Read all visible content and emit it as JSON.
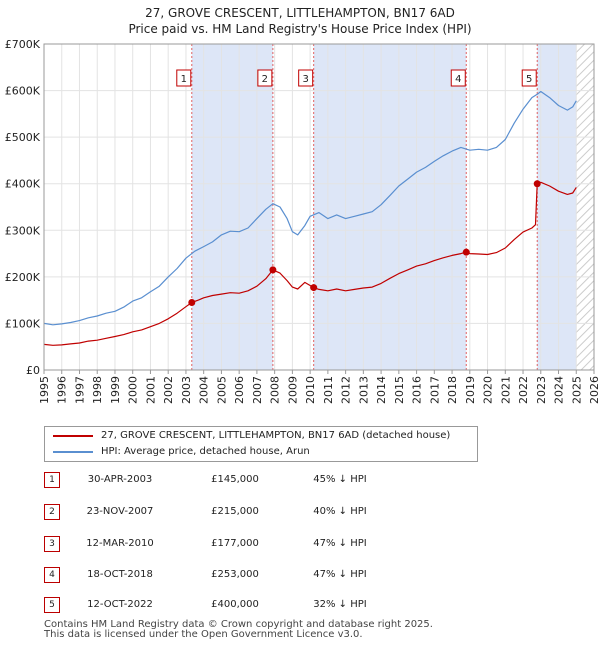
{
  "title_line1": "27, GROVE CRESCENT, LITTLEHAMPTON, BN17 6AD",
  "title_line2": "Price paid vs. HM Land Registry's House Price Index (HPI)",
  "legend": {
    "property_label": "27, GROVE CRESCENT, LITTLEHAMPTON, BN17 6AD (detached house)",
    "hpi_label": "HPI: Average price, detached house, Arun"
  },
  "colors": {
    "property": "#c00000",
    "hpi": "#5a8fd0",
    "shade": "#dde6f7",
    "hatch": "#cccccc"
  },
  "sales": [
    {
      "num": "1",
      "date": "30-APR-2003",
      "price": "£145,000",
      "hpi": "45% ↓ HPI"
    },
    {
      "num": "2",
      "date": "23-NOV-2007",
      "price": "£215,000",
      "hpi": "40% ↓ HPI"
    },
    {
      "num": "3",
      "date": "12-MAR-2010",
      "price": "£177,000",
      "hpi": "47% ↓ HPI"
    },
    {
      "num": "4",
      "date": "18-OCT-2018",
      "price": "£253,000",
      "hpi": "47% ↓ HPI"
    },
    {
      "num": "5",
      "date": "12-OCT-2022",
      "price": "£400,000",
      "hpi": "32% ↓ HPI"
    }
  ],
  "footer_line1": "Contains HM Land Registry data © Crown copyright and database right 2025.",
  "footer_line2": "This data is licensed under the Open Government Licence v3.0.",
  "chart_data": {
    "type": "line",
    "title": "Price paid vs. HM Land Registry's House Price Index (HPI)",
    "xlim": [
      1995,
      2026
    ],
    "ylim": [
      0,
      700000
    ],
    "x_ticks": [
      1995,
      1996,
      1997,
      1998,
      1999,
      2000,
      2001,
      2002,
      2003,
      2004,
      2005,
      2006,
      2007,
      2008,
      2009,
      2010,
      2011,
      2012,
      2013,
      2014,
      2015,
      2016,
      2017,
      2018,
      2019,
      2020,
      2021,
      2022,
      2023,
      2024,
      2025,
      2026
    ],
    "y_ticks": [
      {
        "value": 0,
        "label": "£0"
      },
      {
        "value": 100000,
        "label": "£100K"
      },
      {
        "value": 200000,
        "label": "£200K"
      },
      {
        "value": 300000,
        "label": "£300K"
      },
      {
        "value": 400000,
        "label": "£400K"
      },
      {
        "value": 500000,
        "label": "£500K"
      },
      {
        "value": 600000,
        "label": "£600K"
      },
      {
        "value": 700000,
        "label": "£700K"
      }
    ],
    "shaded_ranges": [
      [
        2003.33,
        2007.9
      ],
      [
        2010.2,
        2018.8
      ],
      [
        2022.8,
        2025.0
      ]
    ],
    "hatched_range": [
      2025.0,
      2026
    ],
    "markers": [
      {
        "label": "1",
        "x": 2003.33,
        "y": 145000
      },
      {
        "label": "2",
        "x": 2007.9,
        "y": 215000
      },
      {
        "label": "3",
        "x": 2010.2,
        "y": 177000
      },
      {
        "label": "4",
        "x": 2018.8,
        "y": 253000
      },
      {
        "label": "5",
        "x": 2022.8,
        "y": 400000
      }
    ],
    "series": [
      {
        "name": "HPI: Average price, detached house, Arun",
        "color": "#5a8fd0",
        "points": [
          [
            1995.0,
            100000
          ],
          [
            1995.5,
            97000
          ],
          [
            1996.0,
            99000
          ],
          [
            1996.5,
            102000
          ],
          [
            1997.0,
            106000
          ],
          [
            1997.5,
            112000
          ],
          [
            1998.0,
            116000
          ],
          [
            1998.5,
            122000
          ],
          [
            1999.0,
            126000
          ],
          [
            1999.5,
            135000
          ],
          [
            2000.0,
            148000
          ],
          [
            2000.5,
            155000
          ],
          [
            2001.0,
            168000
          ],
          [
            2001.5,
            180000
          ],
          [
            2002.0,
            200000
          ],
          [
            2002.5,
            218000
          ],
          [
            2003.0,
            240000
          ],
          [
            2003.5,
            255000
          ],
          [
            2004.0,
            265000
          ],
          [
            2004.5,
            275000
          ],
          [
            2005.0,
            290000
          ],
          [
            2005.5,
            298000
          ],
          [
            2006.0,
            297000
          ],
          [
            2006.5,
            305000
          ],
          [
            2007.0,
            325000
          ],
          [
            2007.5,
            345000
          ],
          [
            2007.9,
            357000
          ],
          [
            2008.3,
            350000
          ],
          [
            2008.7,
            325000
          ],
          [
            2009.0,
            297000
          ],
          [
            2009.3,
            290000
          ],
          [
            2009.7,
            310000
          ],
          [
            2010.0,
            330000
          ],
          [
            2010.5,
            338000
          ],
          [
            2011.0,
            325000
          ],
          [
            2011.5,
            333000
          ],
          [
            2012.0,
            325000
          ],
          [
            2012.5,
            330000
          ],
          [
            2013.0,
            335000
          ],
          [
            2013.5,
            340000
          ],
          [
            2014.0,
            355000
          ],
          [
            2014.5,
            375000
          ],
          [
            2015.0,
            395000
          ],
          [
            2015.5,
            410000
          ],
          [
            2016.0,
            425000
          ],
          [
            2016.5,
            435000
          ],
          [
            2017.0,
            448000
          ],
          [
            2017.5,
            460000
          ],
          [
            2018.0,
            470000
          ],
          [
            2018.5,
            478000
          ],
          [
            2019.0,
            472000
          ],
          [
            2019.5,
            474000
          ],
          [
            2020.0,
            472000
          ],
          [
            2020.5,
            478000
          ],
          [
            2021.0,
            495000
          ],
          [
            2021.5,
            530000
          ],
          [
            2022.0,
            560000
          ],
          [
            2022.5,
            585000
          ],
          [
            2022.8,
            592000
          ],
          [
            2023.0,
            598000
          ],
          [
            2023.5,
            585000
          ],
          [
            2024.0,
            568000
          ],
          [
            2024.5,
            558000
          ],
          [
            2024.8,
            565000
          ],
          [
            2025.0,
            578000
          ]
        ]
      },
      {
        "name": "27, GROVE CRESCENT, LITTLEHAMPTON, BN17 6AD (detached house)",
        "color": "#c00000",
        "points": [
          [
            1995.0,
            55000
          ],
          [
            1995.5,
            53000
          ],
          [
            1996.0,
            54000
          ],
          [
            1996.5,
            56000
          ],
          [
            1997.0,
            58000
          ],
          [
            1997.5,
            62000
          ],
          [
            1998.0,
            64000
          ],
          [
            1998.5,
            68000
          ],
          [
            1999.0,
            72000
          ],
          [
            1999.5,
            76000
          ],
          [
            2000.0,
            82000
          ],
          [
            2000.5,
            86000
          ],
          [
            2001.0,
            93000
          ],
          [
            2001.5,
            100000
          ],
          [
            2002.0,
            110000
          ],
          [
            2002.5,
            122000
          ],
          [
            2003.0,
            136000
          ],
          [
            2003.33,
            145000
          ],
          [
            2003.7,
            150000
          ],
          [
            2004.0,
            155000
          ],
          [
            2004.5,
            160000
          ],
          [
            2005.0,
            163000
          ],
          [
            2005.5,
            166000
          ],
          [
            2006.0,
            165000
          ],
          [
            2006.5,
            170000
          ],
          [
            2007.0,
            180000
          ],
          [
            2007.5,
            196000
          ],
          [
            2007.9,
            215000
          ],
          [
            2008.3,
            208000
          ],
          [
            2008.7,
            192000
          ],
          [
            2009.0,
            178000
          ],
          [
            2009.3,
            174000
          ],
          [
            2009.7,
            188000
          ],
          [
            2010.2,
            177000
          ],
          [
            2010.5,
            173000
          ],
          [
            2011.0,
            170000
          ],
          [
            2011.5,
            174000
          ],
          [
            2012.0,
            170000
          ],
          [
            2012.5,
            173000
          ],
          [
            2013.0,
            176000
          ],
          [
            2013.5,
            178000
          ],
          [
            2014.0,
            186000
          ],
          [
            2014.5,
            197000
          ],
          [
            2015.0,
            207000
          ],
          [
            2015.5,
            215000
          ],
          [
            2016.0,
            223000
          ],
          [
            2016.5,
            228000
          ],
          [
            2017.0,
            235000
          ],
          [
            2017.5,
            241000
          ],
          [
            2018.0,
            246000
          ],
          [
            2018.5,
            250000
          ],
          [
            2018.8,
            253000
          ],
          [
            2019.0,
            250000
          ],
          [
            2019.5,
            249000
          ],
          [
            2020.0,
            248000
          ],
          [
            2020.5,
            252000
          ],
          [
            2021.0,
            262000
          ],
          [
            2021.5,
            280000
          ],
          [
            2022.0,
            296000
          ],
          [
            2022.5,
            305000
          ],
          [
            2022.7,
            312000
          ],
          [
            2022.8,
            400000
          ],
          [
            2023.0,
            403000
          ],
          [
            2023.5,
            395000
          ],
          [
            2024.0,
            384000
          ],
          [
            2024.5,
            377000
          ],
          [
            2024.8,
            380000
          ],
          [
            2025.0,
            392000
          ]
        ]
      }
    ]
  }
}
